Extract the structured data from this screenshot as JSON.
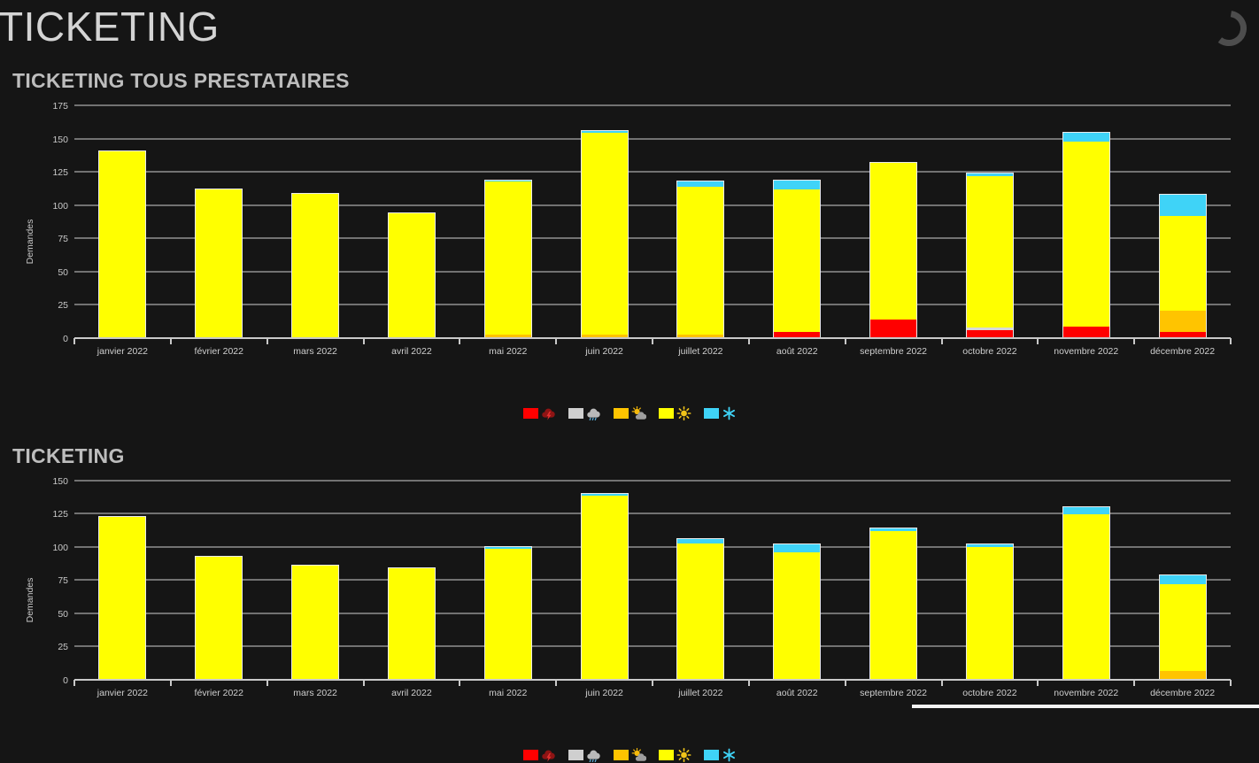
{
  "header": {
    "title": "TICKETING",
    "spinner_icon": "loading-spinner-icon"
  },
  "legend": {
    "items": [
      {
        "icon": "thunderstorm-icon",
        "swatch_color": "#ff0000"
      },
      {
        "icon": "rain-icon",
        "swatch_color": "#cfcfcf"
      },
      {
        "icon": "partly-cloudy-icon",
        "swatch_color": "#ffc400"
      },
      {
        "icon": "sunny-icon",
        "swatch_color": "#ffff00"
      },
      {
        "icon": "snow-icon",
        "swatch_color": "#3fd3f7"
      }
    ]
  },
  "chart_data": [
    {
      "type": "bar",
      "stacked": true,
      "title": "TICKETING TOUS PRESTATAIRES",
      "ylabel": "Demandes",
      "ylim": [
        0,
        175
      ],
      "yticks": [
        0,
        25,
        50,
        75,
        100,
        125,
        150,
        175
      ],
      "grid": true,
      "legend_position": "bottom-center",
      "categories": [
        "janvier 2022",
        "février 2022",
        "mars 2022",
        "avril 2022",
        "mai 2022",
        "juin 2022",
        "juillet 2022",
        "août 2022",
        "septembre 2022",
        "octobre 2022",
        "novembre 2022",
        "décembre 2022"
      ],
      "series": [
        {
          "name": "thunderstorm",
          "color": "#ff0000",
          "values": [
            0,
            0,
            0,
            0,
            0,
            0,
            0,
            4,
            13,
            5,
            8,
            4
          ]
        },
        {
          "name": "rain",
          "color": "#d9d9d9",
          "values": [
            0,
            0,
            0,
            0,
            0,
            0,
            0,
            0,
            0,
            2,
            0,
            0
          ]
        },
        {
          "name": "partly-cloudy",
          "color": "#ffc400",
          "values": [
            0,
            0,
            0,
            0,
            2,
            2,
            2,
            0,
            0,
            0,
            0,
            16
          ]
        },
        {
          "name": "sunny",
          "color": "#ffff00",
          "values": [
            140,
            111,
            108,
            93,
            115,
            152,
            111,
            107,
            118,
            114,
            139,
            71
          ]
        },
        {
          "name": "snow",
          "color": "#3fd3f7",
          "values": [
            0,
            0,
            0,
            0,
            1,
            1,
            4,
            7,
            0,
            2,
            7,
            16
          ]
        }
      ],
      "totals": [
        140,
        111,
        108,
        93,
        118,
        155,
        117,
        118,
        131,
        123,
        154,
        107
      ]
    },
    {
      "type": "bar",
      "stacked": true,
      "title": "TICKETING",
      "ylabel": "Demandes",
      "ylim": [
        0,
        150
      ],
      "yticks": [
        0,
        25,
        50,
        75,
        100,
        125,
        150
      ],
      "grid": true,
      "legend_position": "bottom-center",
      "categories": [
        "janvier 2022",
        "février 2022",
        "mars 2022",
        "avril 2022",
        "mai 2022",
        "juin 2022",
        "juillet 2022",
        "août 2022",
        "septembre 2022",
        "octobre 2022",
        "novembre 2022",
        "décembre 2022"
      ],
      "series": [
        {
          "name": "thunderstorm",
          "color": "#ff0000",
          "values": [
            0,
            0,
            0,
            0,
            0,
            0,
            0,
            0,
            0,
            0,
            0,
            0
          ]
        },
        {
          "name": "rain",
          "color": "#d9d9d9",
          "values": [
            0,
            0,
            0,
            0,
            0,
            0,
            0,
            0,
            0,
            0,
            0,
            0
          ]
        },
        {
          "name": "partly-cloudy",
          "color": "#ffc400",
          "values": [
            0,
            0,
            0,
            0,
            0,
            0,
            0,
            0,
            0,
            0,
            0,
            6
          ]
        },
        {
          "name": "sunny",
          "color": "#ffff00",
          "values": [
            122,
            92,
            85,
            83,
            98,
            138,
            102,
            95,
            111,
            99,
            124,
            65
          ]
        },
        {
          "name": "snow",
          "color": "#3fd3f7",
          "values": [
            0,
            0,
            0,
            0,
            1,
            1,
            3,
            6,
            2,
            2,
            5,
            7
          ]
        }
      ],
      "totals": [
        122,
        92,
        85,
        83,
        99,
        139,
        105,
        101,
        113,
        101,
        129,
        78
      ]
    }
  ]
}
